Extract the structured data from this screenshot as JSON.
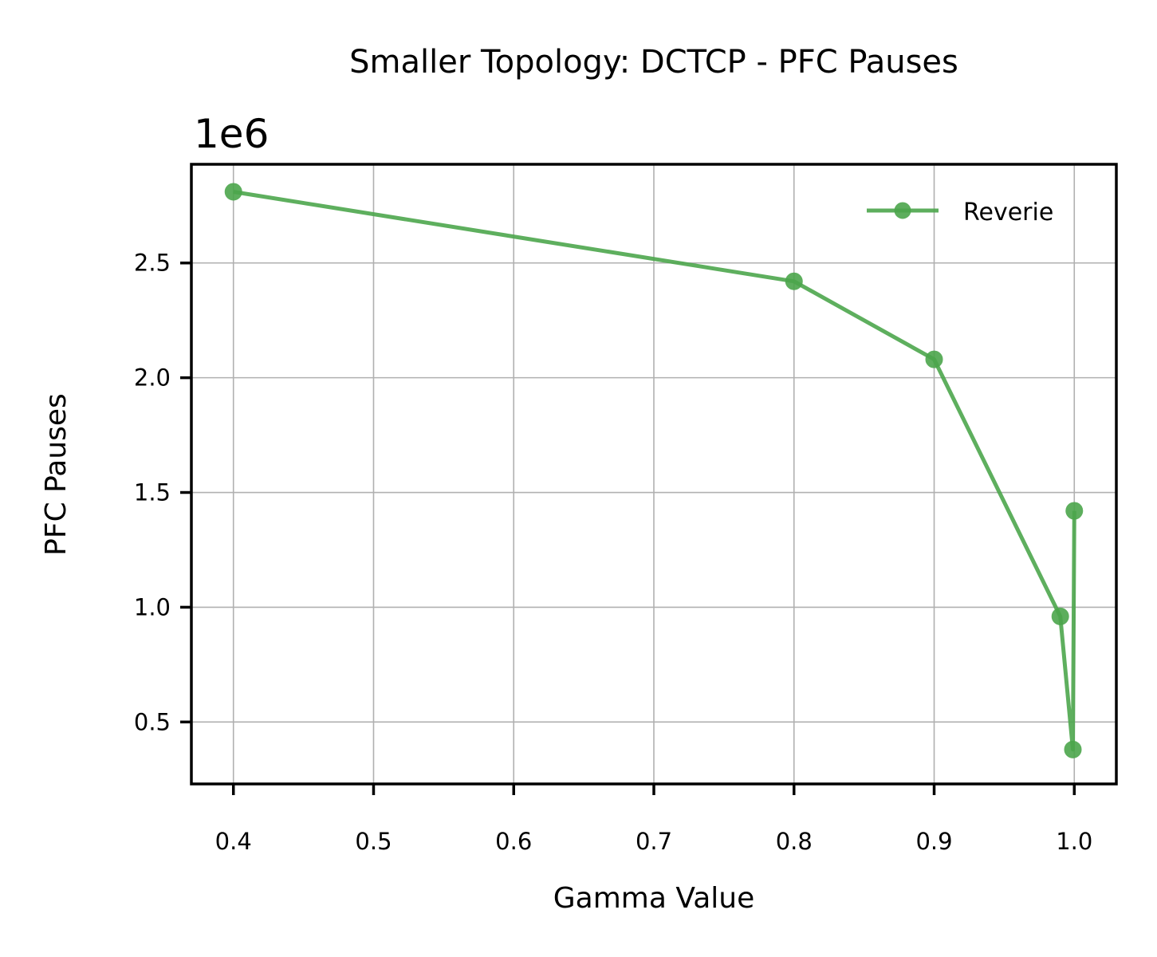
{
  "chart_data": {
    "type": "line",
    "title": "Smaller Topology: DCTCP - PFC Pauses",
    "xlabel": "Gamma Value",
    "ylabel": "PFC Pauses",
    "y_offset_label": "1e6",
    "y_scale_factor": 1000000,
    "xlim": [
      0.37,
      1.03
    ],
    "ylim": [
      230000,
      2930000
    ],
    "x_ticks": [
      0.4,
      0.5,
      0.6,
      0.7,
      0.8,
      0.9,
      1.0
    ],
    "x_tick_labels": [
      "0.4",
      "0.5",
      "0.6",
      "0.7",
      "0.8",
      "0.9",
      "1.0"
    ],
    "y_ticks": [
      500000,
      1000000,
      1500000,
      2000000,
      2500000
    ],
    "y_tick_labels": [
      "0.5",
      "1.0",
      "1.5",
      "2.0",
      "2.5"
    ],
    "grid": true,
    "legend_position": "upper-right",
    "series": [
      {
        "name": "Reverie",
        "color": "#4ca64c",
        "marker": "circle",
        "x": [
          0.4,
          0.8,
          0.9,
          0.99,
          0.999,
          1.0
        ],
        "y": [
          2810000,
          2420000,
          2080000,
          960000,
          380000,
          1420000
        ]
      }
    ]
  }
}
